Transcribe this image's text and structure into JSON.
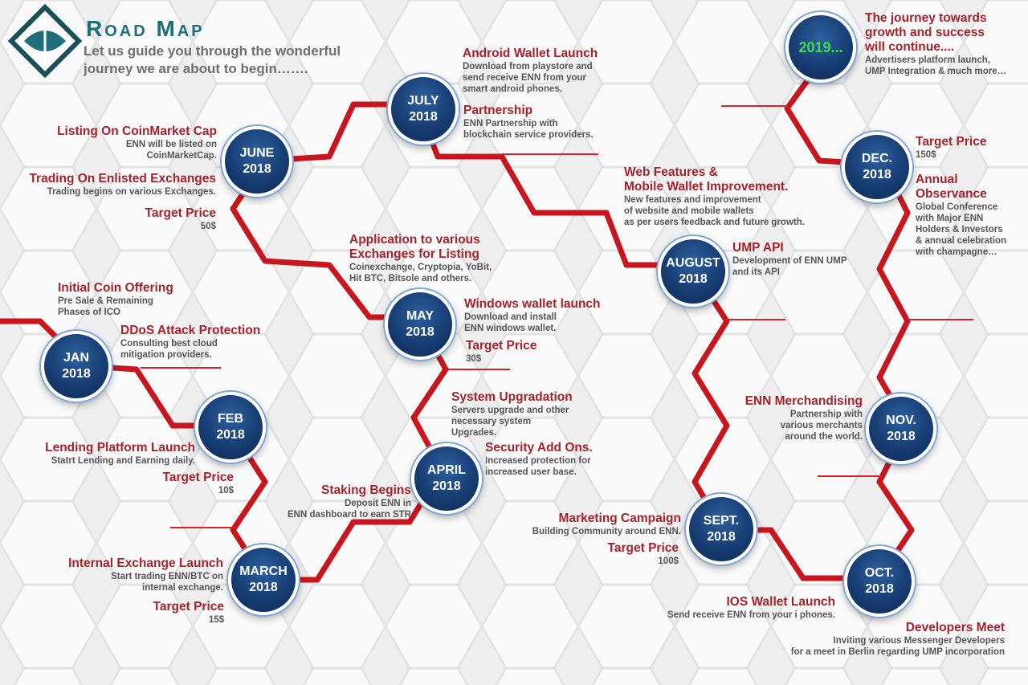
{
  "header": {
    "title": "Road Map",
    "subtitle_line1": "Let us guide you through the wonderful",
    "subtitle_line2": "journey we are about to begin……."
  },
  "colors": {
    "path": "#d8222b",
    "node": "#173d73",
    "heading": "#a5232b",
    "title": "#1f6f7b"
  },
  "nodes": {
    "jan": {
      "month": "JAN",
      "year": "2018"
    },
    "feb": {
      "month": "FEB",
      "year": "2018"
    },
    "march": {
      "month": "MARCH",
      "year": "2018"
    },
    "april": {
      "month": "APRIL",
      "year": "2018"
    },
    "may": {
      "month": "MAY",
      "year": "2018"
    },
    "june": {
      "month": "JUNE",
      "year": "2018"
    },
    "july": {
      "month": "JULY",
      "year": "2018"
    },
    "august": {
      "month": "AUGUST",
      "year": "2018"
    },
    "sept": {
      "month": "SEPT.",
      "year": "2018"
    },
    "oct": {
      "month": "OCT.",
      "year": "2018"
    },
    "nov": {
      "month": "NOV.",
      "year": "2018"
    },
    "dec": {
      "month": "DEC.",
      "year": "2018"
    },
    "y2019": {
      "month": "2019...",
      "year": ""
    }
  },
  "items": {
    "ico": {
      "h": "Initial Coin Offering",
      "d1": "Pre Sale & Remaining",
      "d2": "Phases of ICO"
    },
    "ddos": {
      "h": "DDoS Attack Protection",
      "d1": "Consulting best cloud",
      "d2": "mitigation providers."
    },
    "lending": {
      "h": "Lending Platform Launch",
      "d1": "Statrt Lending and Earning daily."
    },
    "feb_price": {
      "h": "Target Price",
      "d1": "10$"
    },
    "internal": {
      "h": "Internal Exchange Launch",
      "d1": "Start trading ENN/BTC on",
      "d2": "internal exchange."
    },
    "mar_price": {
      "h": "Target Price",
      "d1": "15$"
    },
    "staking": {
      "h": "Staking Begins",
      "d1": "Deposit ENN in",
      "d2": "ENN dashboard to earn STR"
    },
    "system": {
      "h": "System Upgradation",
      "d1": "Servers upgrade and other",
      "d2": "necessary system",
      "d3": "Upgrades."
    },
    "security": {
      "h": "Security Add Ons.",
      "d1": "Increased protection for",
      "d2": "increased user base."
    },
    "application": {
      "h1": "Application to various",
      "h2": "Exchanges for Listing",
      "d1": "Coinexchange, Cryptopia, YoBit,",
      "d2": "Hit BTC, Bitsole and others."
    },
    "windows": {
      "h": "Windows wallet launch",
      "d1": "Download and install",
      "d2": "ENN windows wallet."
    },
    "may_price": {
      "h": "Target Price",
      "d1": "30$"
    },
    "coinmarket": {
      "h": "Listing On CoinMarket Cap",
      "d1": "ENN will be listed on",
      "d2": "CoinMarketCap."
    },
    "trading": {
      "h": "Trading On Enlisted Exchanges",
      "d1": "Trading begins on various Exchanges."
    },
    "jun_price": {
      "h": "Target Price",
      "d1": "50$"
    },
    "android": {
      "h": "Android Wallet Launch",
      "d1": "Download from playstore and",
      "d2": "send receive ENN from your",
      "d3": "smart android phones."
    },
    "partnership": {
      "h": "Partnership",
      "d1": "ENN Partnership with",
      "d2": "blockchain service providers."
    },
    "web": {
      "h1": "Web Features &",
      "h2": "Mobile Wallet Improvement.",
      "d1": "New features and improvement",
      "d2": " of website and mobile wallets",
      "d3": "as per users feedback and future growth."
    },
    "ump": {
      "h": "UMP API",
      "d1": "Development of ENN UMP",
      "d2": "and its API"
    },
    "marketing": {
      "h": "Marketing Campaign",
      "d1": "Building Community around ENN."
    },
    "sep_price": {
      "h": "Target Price",
      "d1": "100$"
    },
    "ios": {
      "h": "IOS Wallet Launch",
      "d1": "Send receive ENN from your i phones."
    },
    "devmeet": {
      "h": "Developers Meet",
      "d1": "Inviting various Messenger Developers",
      "d2": "for a meet in Berlin regarding UMP incorporation"
    },
    "merch": {
      "h": "ENN Merchandising",
      "d1": "Partnership with",
      "d2": "various merchants",
      "d3": "around the world."
    },
    "dec_price": {
      "h": "Target Price",
      "d1": "150$"
    },
    "annual": {
      "h1": "Annual",
      "h2": "Observance",
      "d1": "Global Conference",
      "d2": " with Major ENN",
      "d3": " Holders & Investors",
      "d4": "& annual celebration",
      "d5": "with champagne…"
    },
    "journey": {
      "h1": "The journey towards",
      "h2": "growth and success",
      "h3": "will continue....",
      "d1": "Advertisers platform launch,",
      "d2": "UMP Integration & much more…"
    }
  }
}
